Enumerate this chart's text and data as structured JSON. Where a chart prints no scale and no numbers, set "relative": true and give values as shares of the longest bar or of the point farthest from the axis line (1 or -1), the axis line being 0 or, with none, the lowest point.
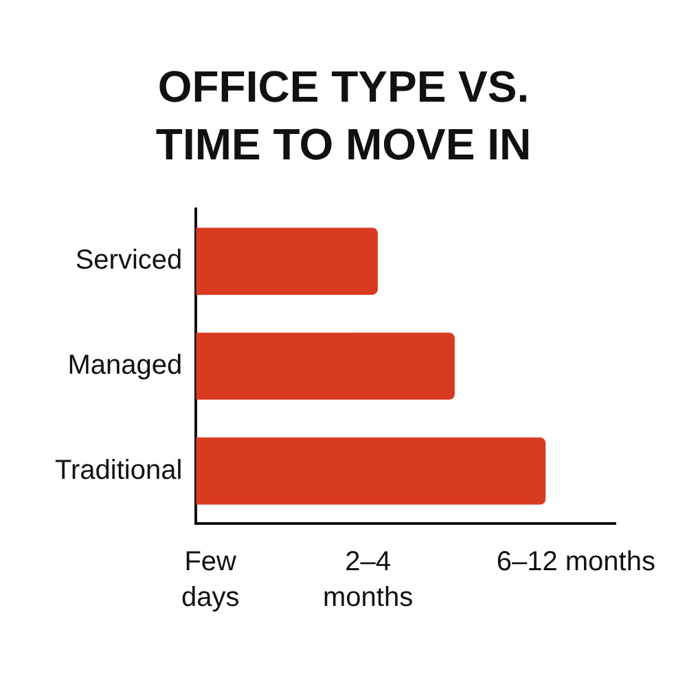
{
  "chart_data": {
    "type": "bar",
    "title": "OFFICE TYPE VS. TIME TO MOVE IN",
    "orientation": "horizontal",
    "relative": true,
    "categories": [
      "Serviced",
      "Managed",
      "Traditional"
    ],
    "values": [
      0.52,
      0.74,
      1
    ],
    "color": "#d93a22",
    "annotations": [
      "Few\ndays",
      "2–4\nmonths",
      "6–12 months"
    ],
    "legend": false
  }
}
